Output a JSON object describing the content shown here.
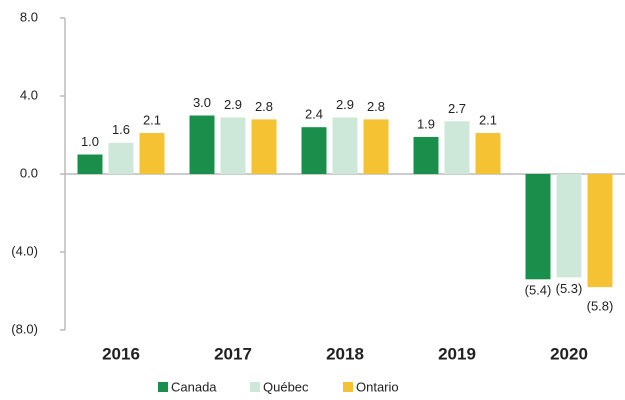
{
  "chart_data": {
    "type": "bar",
    "categories": [
      "2016",
      "2017",
      "2018",
      "2019",
      "2020"
    ],
    "series": [
      {
        "name": "Canada",
        "color": "#1a8f4c",
        "values": [
          1.0,
          3.0,
          2.4,
          1.9,
          -5.4
        ],
        "value_labels": [
          "1.0",
          "3.0",
          "2.4",
          "1.9",
          "(5.4)"
        ]
      },
      {
        "name": "Québec",
        "color": "#cde8d8",
        "values": [
          1.6,
          2.9,
          2.9,
          2.7,
          -5.3
        ],
        "value_labels": [
          "1.6",
          "2.9",
          "2.9",
          "2.7",
          "(5.3)"
        ]
      },
      {
        "name": "Ontario",
        "color": "#f5c233",
        "values": [
          2.1,
          2.8,
          2.8,
          2.1,
          -5.8
        ],
        "value_labels": [
          "2.1",
          "2.8",
          "2.8",
          "2.1",
          "(5.8)"
        ]
      }
    ],
    "ylim": [
      -8,
      8
    ],
    "yticks": [
      {
        "value": 8,
        "label": "8.0"
      },
      {
        "value": 4,
        "label": "4.0"
      },
      {
        "value": 0,
        "label": "0.0"
      },
      {
        "value": -4,
        "label": "(4.0)"
      },
      {
        "value": -8,
        "label": "(8.0)"
      }
    ],
    "legend": "bottom"
  }
}
